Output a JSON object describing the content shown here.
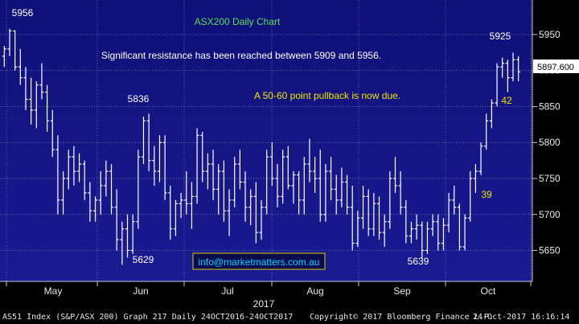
{
  "chart_data": {
    "type": "ohlc",
    "title": "ASX200 Daily Chart",
    "year_label": "2017",
    "yticks": [
      5650,
      5700,
      5750,
      5800,
      5850,
      5900,
      5950
    ],
    "ylim": [
      5607,
      5998
    ],
    "last_price": "5897.600",
    "months": [
      "May",
      "Jun",
      "Jul",
      "Aug",
      "Sep",
      "Oct"
    ],
    "annotations": [
      {
        "id": "ann-5956",
        "text": "5956",
        "color": "#ffffff"
      },
      {
        "id": "ann-5836",
        "text": "5836",
        "color": "#ffffff"
      },
      {
        "id": "ann-5629",
        "text": "5629",
        "color": "#ffffff"
      },
      {
        "id": "ann-5639",
        "text": "5639",
        "color": "#ffffff"
      },
      {
        "id": "ann-5925",
        "text": "5925",
        "color": "#ffffff"
      },
      {
        "id": "ann-42",
        "text": "42",
        "color": "#f0e500"
      },
      {
        "id": "ann-39",
        "text": "39",
        "color": "#f0e500"
      },
      {
        "id": "ann-resistance",
        "text": "Significant resistance has been reached between 5909 and 5956.",
        "color": "#ffffff"
      },
      {
        "id": "ann-pullback",
        "text": "A 50-60 point pullback is now due.",
        "color": "#f0e500"
      }
    ],
    "website": "info@marketmatters.com.au",
    "bars": [
      [
        5920,
        5934,
        5905,
        5930
      ],
      [
        5930,
        5958,
        5920,
        5955
      ],
      [
        5955,
        5956,
        5900,
        5905
      ],
      [
        5905,
        5930,
        5880,
        5890
      ],
      [
        5890,
        5905,
        5845,
        5860
      ],
      [
        5860,
        5890,
        5825,
        5845
      ],
      [
        5845,
        5885,
        5820,
        5880
      ],
      [
        5880,
        5910,
        5860,
        5870
      ],
      [
        5870,
        5880,
        5815,
        5830
      ],
      [
        5830,
        5845,
        5780,
        5790
      ],
      [
        5790,
        5810,
        5700,
        5720
      ],
      [
        5720,
        5760,
        5700,
        5750
      ],
      [
        5750,
        5790,
        5735,
        5780
      ],
      [
        5780,
        5795,
        5740,
        5760
      ],
      [
        5760,
        5785,
        5745,
        5770
      ],
      [
        5770,
        5775,
        5720,
        5730
      ],
      [
        5730,
        5745,
        5690,
        5705
      ],
      [
        5705,
        5725,
        5690,
        5720
      ],
      [
        5720,
        5760,
        5700,
        5740
      ],
      [
        5740,
        5775,
        5725,
        5760
      ],
      [
        5760,
        5770,
        5700,
        5710
      ],
      [
        5710,
        5735,
        5650,
        5665
      ],
      [
        5665,
        5690,
        5630,
        5680
      ],
      [
        5680,
        5700,
        5640,
        5650
      ],
      [
        5650,
        5700,
        5645,
        5690
      ],
      [
        5690,
        5790,
        5680,
        5780
      ],
      [
        5780,
        5836,
        5770,
        5830
      ],
      [
        5830,
        5840,
        5760,
        5775
      ],
      [
        5775,
        5795,
        5740,
        5760
      ],
      [
        5760,
        5810,
        5745,
        5800
      ],
      [
        5800,
        5810,
        5720,
        5730
      ],
      [
        5730,
        5740,
        5665,
        5680
      ],
      [
        5680,
        5720,
        5670,
        5715
      ],
      [
        5715,
        5730,
        5695,
        5720
      ],
      [
        5720,
        5760,
        5700,
        5715
      ],
      [
        5715,
        5745,
        5680,
        5725
      ],
      [
        5725,
        5820,
        5715,
        5810
      ],
      [
        5810,
        5815,
        5745,
        5760
      ],
      [
        5760,
        5785,
        5735,
        5770
      ],
      [
        5770,
        5790,
        5720,
        5735
      ],
      [
        5735,
        5770,
        5700,
        5760
      ],
      [
        5760,
        5775,
        5690,
        5705
      ],
      [
        5705,
        5735,
        5670,
        5720
      ],
      [
        5720,
        5780,
        5710,
        5770
      ],
      [
        5770,
        5790,
        5735,
        5745
      ],
      [
        5745,
        5760,
        5690,
        5710
      ],
      [
        5710,
        5735,
        5685,
        5725
      ],
      [
        5725,
        5745,
        5660,
        5675
      ],
      [
        5675,
        5720,
        5665,
        5710
      ],
      [
        5710,
        5790,
        5700,
        5780
      ],
      [
        5780,
        5800,
        5740,
        5750
      ],
      [
        5750,
        5770,
        5710,
        5725
      ],
      [
        5725,
        5790,
        5715,
        5780
      ],
      [
        5780,
        5795,
        5735,
        5740
      ],
      [
        5740,
        5760,
        5715,
        5755
      ],
      [
        5755,
        5760,
        5700,
        5720
      ],
      [
        5720,
        5780,
        5700,
        5770
      ],
      [
        5770,
        5805,
        5745,
        5760
      ],
      [
        5760,
        5780,
        5730,
        5750
      ],
      [
        5750,
        5790,
        5690,
        5700
      ],
      [
        5700,
        5770,
        5690,
        5760
      ],
      [
        5760,
        5780,
        5720,
        5735
      ],
      [
        5735,
        5755,
        5700,
        5720
      ],
      [
        5720,
        5765,
        5710,
        5745
      ],
      [
        5745,
        5755,
        5700,
        5710
      ],
      [
        5710,
        5740,
        5650,
        5660
      ],
      [
        5660,
        5705,
        5655,
        5695
      ],
      [
        5695,
        5740,
        5680,
        5725
      ],
      [
        5725,
        5735,
        5670,
        5680
      ],
      [
        5680,
        5730,
        5670,
        5715
      ],
      [
        5715,
        5725,
        5665,
        5675
      ],
      [
        5675,
        5700,
        5655,
        5690
      ],
      [
        5690,
        5760,
        5680,
        5750
      ],
      [
        5750,
        5780,
        5730,
        5740
      ],
      [
        5740,
        5760,
        5700,
        5710
      ],
      [
        5710,
        5720,
        5660,
        5670
      ],
      [
        5670,
        5690,
        5660,
        5680
      ],
      [
        5680,
        5700,
        5665,
        5685
      ],
      [
        5685,
        5690,
        5639,
        5650
      ],
      [
        5650,
        5690,
        5645,
        5680
      ],
      [
        5680,
        5700,
        5670,
        5690
      ],
      [
        5690,
        5700,
        5650,
        5660
      ],
      [
        5660,
        5695,
        5650,
        5685
      ],
      [
        5685,
        5730,
        5675,
        5720
      ],
      [
        5720,
        5740,
        5700,
        5710
      ],
      [
        5710,
        5715,
        5650,
        5655
      ],
      [
        5655,
        5700,
        5650,
        5695
      ],
      [
        5695,
        5760,
        5690,
        5750
      ],
      [
        5750,
        5770,
        5730,
        5760
      ],
      [
        5760,
        5800,
        5755,
        5795
      ],
      [
        5795,
        5840,
        5790,
        5830
      ],
      [
        5830,
        5860,
        5820,
        5855
      ],
      [
        5855,
        5910,
        5850,
        5905
      ],
      [
        5905,
        5918,
        5890,
        5910
      ],
      [
        5910,
        5915,
        5870,
        5890
      ],
      [
        5890,
        5925,
        5885,
        5915
      ],
      [
        5915,
        5920,
        5885,
        5898
      ]
    ]
  },
  "footer": {
    "index": "AS51 Index (S&P/ASX 200) Graph 217  Daily 24OCT2016-24OCT2017",
    "copyright": "Copyright© 2017 Bloomberg Finance L.P.",
    "timestamp": "24-Oct-2017 16:16:14"
  }
}
